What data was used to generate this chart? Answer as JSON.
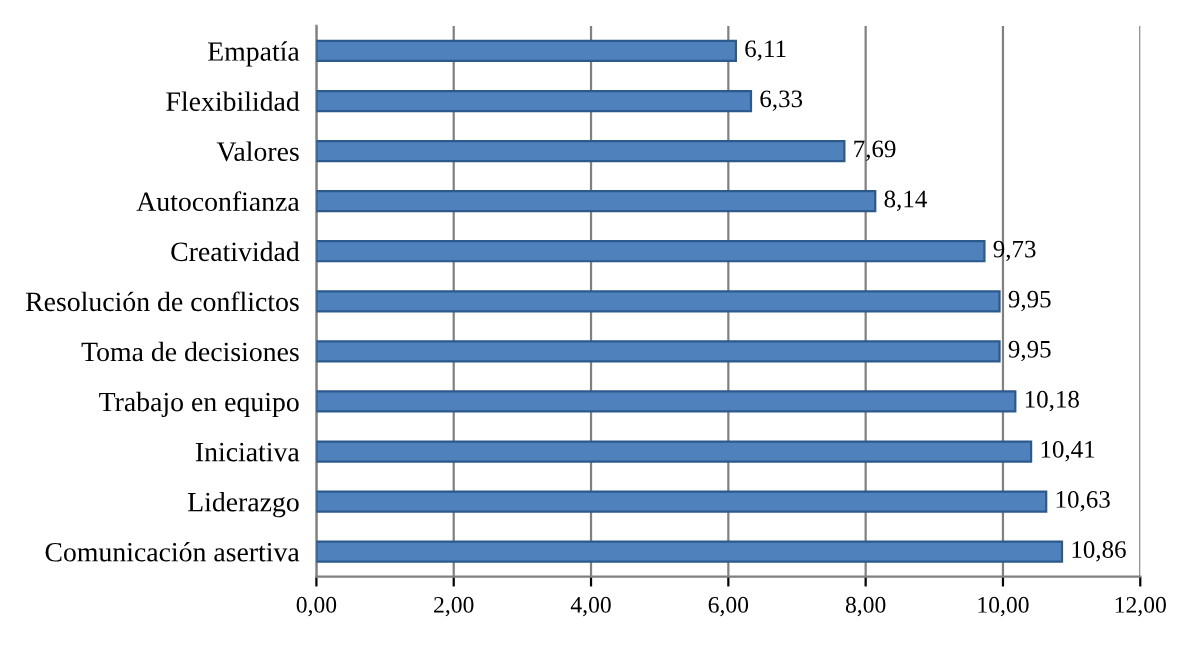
{
  "chart_data": {
    "type": "bar",
    "orientation": "horizontal",
    "categories": [
      "Empatía",
      "Flexibilidad",
      "Valores",
      "Autoconfianza",
      "Creatividad",
      "Resolución de conflictos",
      "Toma de decisiones",
      "Trabajo en equipo",
      "Iniciativa",
      "Liderazgo",
      "Comunicación asertiva"
    ],
    "values": [
      6.11,
      6.33,
      7.69,
      8.14,
      9.73,
      9.95,
      9.95,
      10.18,
      10.41,
      10.63,
      10.86
    ],
    "value_labels": [
      "6,11",
      "6,33",
      "7,69",
      "8,14",
      "9,73",
      "9,95",
      "9,95",
      "10,18",
      "10,41",
      "10,63",
      "10,86"
    ],
    "color": "#4f81bd",
    "xlim": [
      0,
      12
    ],
    "xticks": [
      {
        "value": 0,
        "label": "0,00"
      },
      {
        "value": 2,
        "label": "2,00"
      },
      {
        "value": 4,
        "label": "4,00"
      },
      {
        "value": 6,
        "label": "6,00"
      },
      {
        "value": 8,
        "label": "8,00"
      },
      {
        "value": 10,
        "label": "10,00"
      },
      {
        "value": 12,
        "label": "12,00"
      }
    ],
    "grid": "x"
  }
}
